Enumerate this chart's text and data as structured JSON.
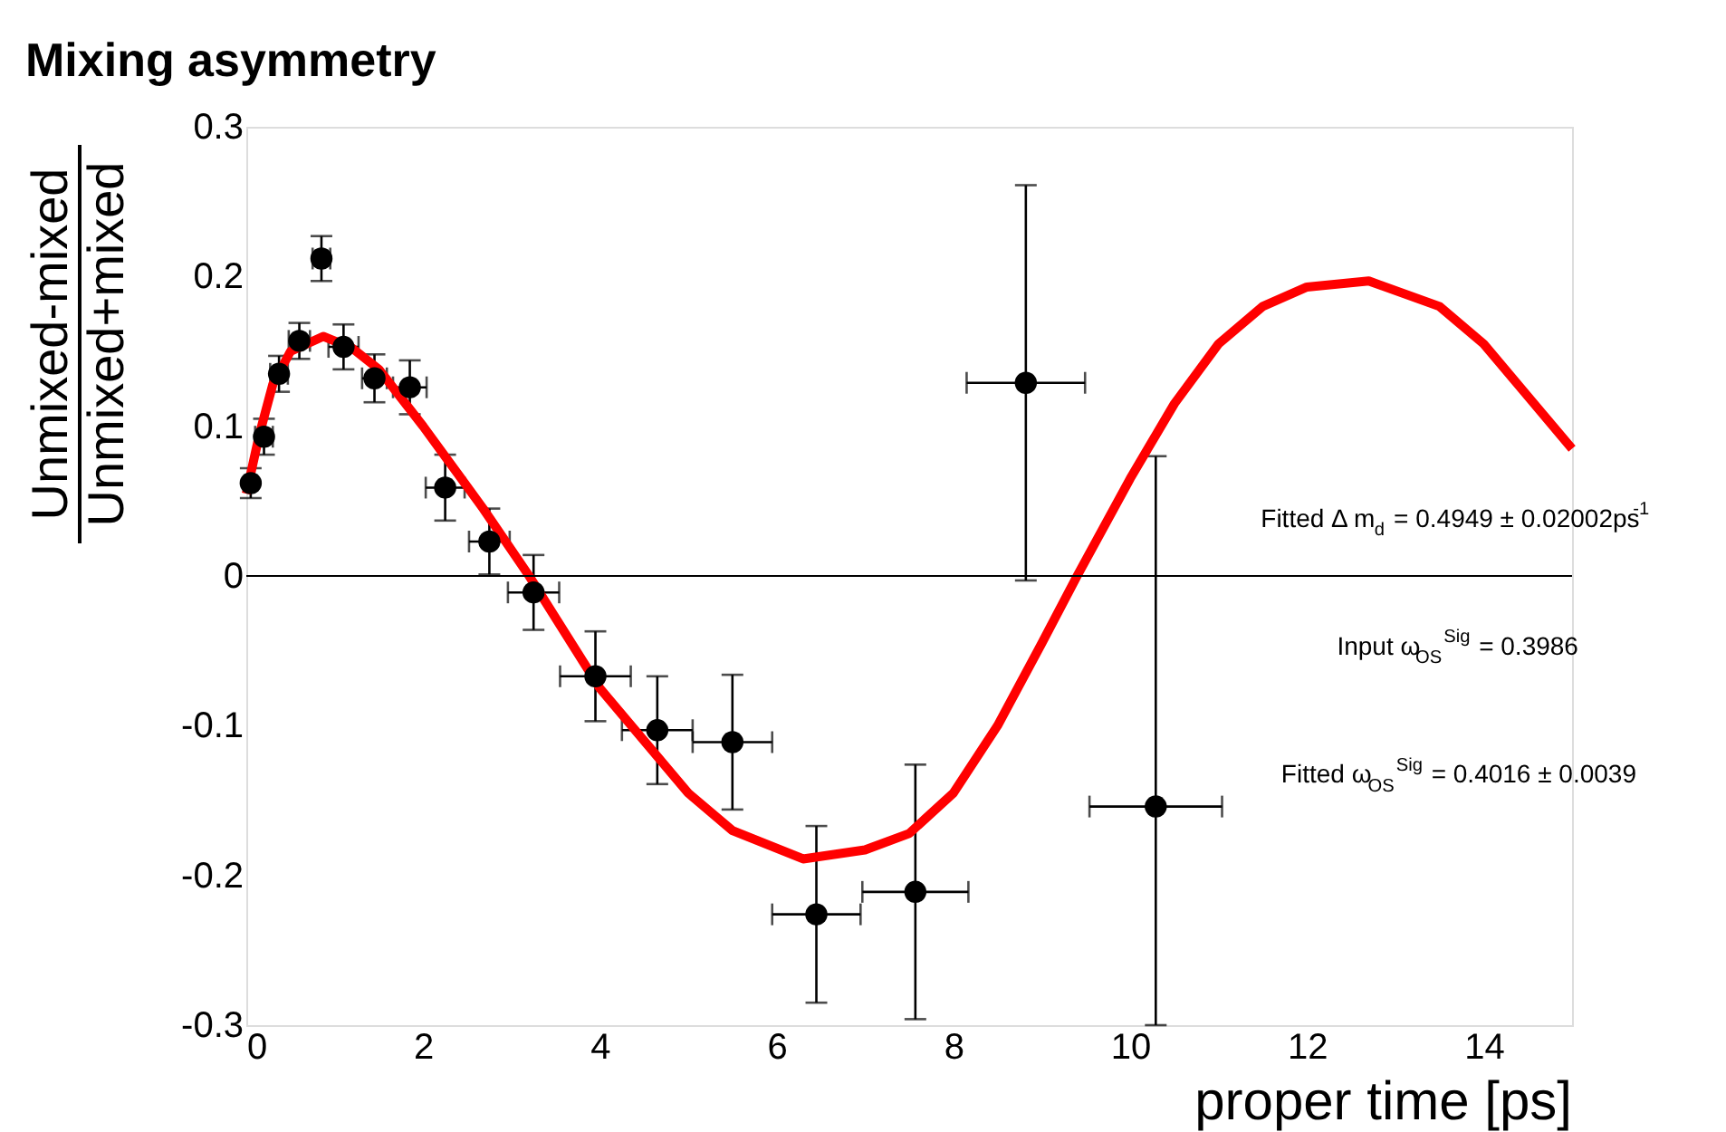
{
  "chart_data": {
    "type": "scatter",
    "title": "Mixing asymmetry",
    "xlabel": "proper time [ps]",
    "ylabel": "Unmixed-mixed\nUnmixed+mixed",
    "xlim": [
      0,
      15
    ],
    "xticks": [
      0,
      2,
      4,
      6,
      8,
      10,
      12,
      14
    ],
    "ylim": [
      -0.3,
      0.3
    ],
    "yticks": [
      -0.3,
      -0.2,
      -0.1,
      0,
      0.1,
      0.2,
      0.3
    ],
    "grid": false,
    "legend": false,
    "marker": "circle",
    "ref_lines": [
      {
        "axis": "y",
        "value": 0,
        "color": "#000000"
      }
    ],
    "annotations": [
      "Fitted Δ m$_{d}$ = 0.4949 ± 0.02002ps$^{-1}$",
      "Input ω$_{OS}$$^{Sig}$ = 0.3986",
      "Fitted ω$_{OS}$$^{Sig}$ = 0.4016 ± 0.0039"
    ],
    "series": [
      {
        "color": "#000000",
        "x": [
          0.05,
          0.2,
          0.37,
          0.6,
          0.85,
          1.1,
          1.45,
          1.85,
          2.25,
          2.75,
          3.25,
          3.95,
          4.65,
          5.5,
          6.45,
          7.57,
          8.82,
          10.29
        ],
        "values": [
          0.062,
          0.093,
          0.135,
          0.157,
          0.212,
          0.153,
          0.132,
          0.126,
          0.059,
          0.023,
          -0.011,
          -0.067,
          -0.103,
          -0.111,
          -0.226,
          -0.211,
          0.129,
          -0.154
        ],
        "errors": [
          0.01,
          0.012,
          0.012,
          0.012,
          0.015,
          0.015,
          0.016,
          0.018,
          0.022,
          0.022,
          0.025,
          0.03,
          0.036,
          0.045,
          0.059,
          0.085,
          0.132,
          [
            -0.3,
            0.08
          ]
        ],
        "xerrors": [
          null,
          0.1,
          0.1,
          0.12,
          0.1,
          0.17,
          0.14,
          0.19,
          0.22,
          0.23,
          0.29,
          0.4,
          0.4,
          0.45,
          0.5,
          0.6,
          0.67,
          0.75
        ]
      },
      {
        "type": "line",
        "marker": "none",
        "color": "#ff0000",
        "x": [
          0,
          0.15,
          0.3,
          0.5,
          0.87,
          1.2,
          1.5,
          2,
          2.68,
          3.2,
          4,
          5,
          5.5,
          6.3,
          7,
          7.5,
          8,
          8.5,
          9,
          9.4,
          10,
          10.5,
          11,
          11.5,
          12,
          12.7,
          13.5,
          14,
          14.5,
          15
        ],
        "values": [
          0.055,
          0.095,
          0.128,
          0.15,
          0.16,
          0.152,
          0.138,
          0.1,
          0.045,
          0,
          -0.075,
          -0.145,
          -0.17,
          -0.189,
          -0.183,
          -0.172,
          -0.145,
          -0.1,
          -0.045,
          0,
          0.065,
          0.115,
          0.155,
          0.18,
          0.193,
          0.197,
          0.18,
          0.155,
          0.12,
          0.085
        ]
      }
    ]
  }
}
